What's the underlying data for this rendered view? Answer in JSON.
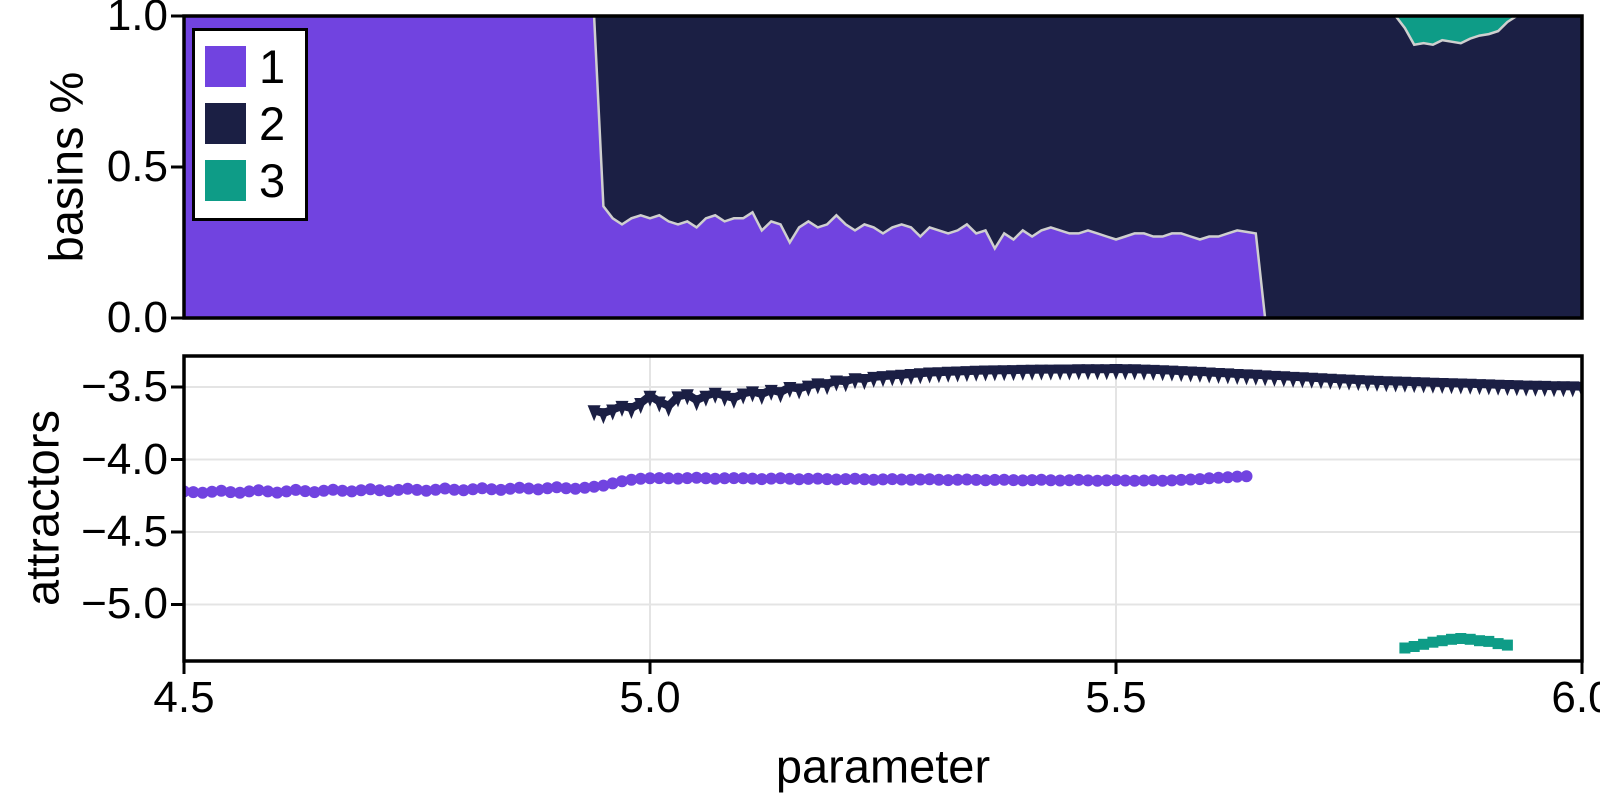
{
  "figure": {
    "xlabel": "parameter",
    "background": "#ffffff",
    "x_ticks": {
      "values": [
        4.5,
        5.0,
        5.5,
        6.0
      ],
      "labels": [
        "4.5",
        "5.0",
        "5.5",
        "6.0"
      ]
    }
  },
  "colors": {
    "attractor1": "#7143E0",
    "attractor2": "#1B1F44",
    "attractor3": "#0E9C87",
    "band_outline": "#CFCFCF",
    "gridline": "#E4E4E4",
    "spine": "#000000",
    "text": "#000000"
  },
  "chart_data": [
    {
      "type": "area",
      "stacked": true,
      "ylabel": "basins %",
      "xlim": [
        4.5,
        6.0
      ],
      "ylim": [
        0,
        1
      ],
      "y_ticks": {
        "values": [
          1.0,
          0.5,
          0.0
        ],
        "labels": [
          "1.0",
          "0.5",
          "0.0"
        ]
      },
      "legend": {
        "position": "top-left",
        "labels": [
          "1",
          "2",
          "3"
        ]
      },
      "x_start": 4.5,
      "x_step": 0.01,
      "series": [
        {
          "name": "1",
          "color_key": "attractor1",
          "fractions": [
            1,
            1,
            1,
            1,
            1,
            1,
            1,
            1,
            1,
            1,
            1,
            1,
            1,
            1,
            1,
            1,
            1,
            1,
            1,
            1,
            1,
            1,
            1,
            1,
            1,
            1,
            1,
            1,
            1,
            1,
            1,
            1,
            1,
            1,
            1,
            1,
            1,
            1,
            1,
            1,
            1,
            1,
            1,
            1,
            1,
            0.37,
            0.33,
            0.31,
            0.33,
            0.34,
            0.33,
            0.34,
            0.32,
            0.31,
            0.32,
            0.3,
            0.33,
            0.34,
            0.32,
            0.33,
            0.33,
            0.35,
            0.29,
            0.32,
            0.31,
            0.25,
            0.3,
            0.32,
            0.3,
            0.31,
            0.34,
            0.31,
            0.29,
            0.31,
            0.3,
            0.28,
            0.3,
            0.31,
            0.3,
            0.27,
            0.3,
            0.29,
            0.28,
            0.29,
            0.31,
            0.28,
            0.29,
            0.23,
            0.28,
            0.26,
            0.29,
            0.27,
            0.29,
            0.3,
            0.29,
            0.28,
            0.28,
            0.29,
            0.28,
            0.27,
            0.26,
            0.27,
            0.28,
            0.28,
            0.27,
            0.27,
            0.28,
            0.28,
            0.27,
            0.26,
            0.27,
            0.27,
            0.28,
            0.29,
            0.285,
            0.28,
            0,
            0,
            0,
            0,
            0,
            0,
            0,
            0,
            0,
            0,
            0,
            0,
            0,
            0,
            0,
            0,
            0,
            0,
            0,
            0,
            0,
            0,
            0,
            0,
            0,
            0,
            0,
            0,
            0,
            0,
            0,
            0,
            0,
            0,
            0
          ]
        },
        {
          "name": "2",
          "color_key": "attractor2",
          "fractions_rule": "remainder"
        },
        {
          "name": "3",
          "color_key": "attractor3",
          "fractions": [
            0,
            0,
            0,
            0,
            0,
            0,
            0,
            0,
            0,
            0,
            0,
            0,
            0,
            0,
            0,
            0,
            0,
            0,
            0,
            0,
            0,
            0,
            0,
            0,
            0,
            0,
            0,
            0,
            0,
            0,
            0,
            0,
            0,
            0,
            0,
            0,
            0,
            0,
            0,
            0,
            0,
            0,
            0,
            0,
            0,
            0,
            0,
            0,
            0,
            0,
            0,
            0,
            0,
            0,
            0,
            0,
            0,
            0,
            0,
            0,
            0,
            0,
            0,
            0,
            0,
            0,
            0,
            0,
            0,
            0,
            0,
            0,
            0,
            0,
            0,
            0,
            0,
            0,
            0,
            0,
            0,
            0,
            0,
            0,
            0,
            0,
            0,
            0,
            0,
            0,
            0,
            0,
            0,
            0,
            0,
            0,
            0,
            0,
            0,
            0,
            0,
            0,
            0,
            0,
            0,
            0,
            0,
            0,
            0,
            0,
            0,
            0,
            0,
            0,
            0,
            0,
            0,
            0,
            0,
            0,
            0,
            0,
            0,
            0,
            0,
            0,
            0,
            0,
            0,
            0,
            0,
            0.04,
            0.095,
            0.09,
            0.095,
            0.08,
            0.085,
            0.09,
            0.075,
            0.065,
            0.06,
            0.05,
            0.02,
            0,
            0,
            0,
            0,
            0,
            0,
            0,
            0
          ]
        }
      ]
    },
    {
      "type": "scatter",
      "ylabel": "attractors",
      "xlim": [
        4.5,
        6.0
      ],
      "ylim": [
        -5.39,
        -3.286
      ],
      "y_ticks": {
        "values": [
          -3.5,
          -4.0,
          -4.5,
          -5.0
        ],
        "labels": [
          "−3.5",
          "−4.0",
          "−4.5",
          "−5.0"
        ]
      },
      "grid": true,
      "series": [
        {
          "name": "1",
          "marker": "circle",
          "color_key": "attractor1",
          "x_start": 4.5,
          "x_step": 0.01,
          "y": [
            -4.22,
            -4.225,
            -4.23,
            -4.222,
            -4.215,
            -4.225,
            -4.23,
            -4.22,
            -4.212,
            -4.22,
            -4.228,
            -4.22,
            -4.21,
            -4.218,
            -4.225,
            -4.215,
            -4.208,
            -4.215,
            -4.22,
            -4.212,
            -4.205,
            -4.212,
            -4.218,
            -4.21,
            -4.202,
            -4.21,
            -4.215,
            -4.208,
            -4.2,
            -4.208,
            -4.212,
            -4.205,
            -4.198,
            -4.205,
            -4.21,
            -4.202,
            -4.195,
            -4.2,
            -4.206,
            -4.198,
            -4.192,
            -4.198,
            -4.202,
            -4.195,
            -4.188,
            -4.18,
            -4.165,
            -4.15,
            -4.14,
            -4.133,
            -4.13,
            -4.128,
            -4.13,
            -4.132,
            -4.128,
            -4.126,
            -4.13,
            -4.133,
            -4.13,
            -4.128,
            -4.13,
            -4.132,
            -4.135,
            -4.132,
            -4.13,
            -4.133,
            -4.136,
            -4.134,
            -4.132,
            -4.135,
            -4.138,
            -4.135,
            -4.133,
            -4.136,
            -4.139,
            -4.137,
            -4.135,
            -4.138,
            -4.14,
            -4.138,
            -4.136,
            -4.139,
            -4.142,
            -4.14,
            -4.138,
            -4.141,
            -4.143,
            -4.141,
            -4.139,
            -4.142,
            -4.144,
            -4.142,
            -4.14,
            -4.143,
            -4.145,
            -4.143,
            -4.141,
            -4.144,
            -4.146,
            -4.144,
            -4.142,
            -4.145,
            -4.147,
            -4.145,
            -4.143,
            -4.146,
            -4.144,
            -4.141,
            -4.138,
            -4.135,
            -4.13,
            -4.126,
            -4.122,
            -4.118,
            -4.115
          ]
        },
        {
          "name": "2",
          "marker": "triangle-down",
          "color_key": "attractor2",
          "x_start": 4.94,
          "x_step": 0.01,
          "y": [
            -3.66,
            -3.68,
            -3.655,
            -3.63,
            -3.645,
            -3.61,
            -3.56,
            -3.6,
            -3.63,
            -3.565,
            -3.55,
            -3.59,
            -3.56,
            -3.54,
            -3.56,
            -3.575,
            -3.545,
            -3.53,
            -3.548,
            -3.52,
            -3.535,
            -3.5,
            -3.51,
            -3.49,
            -3.475,
            -3.48,
            -3.455,
            -3.46,
            -3.44,
            -3.445,
            -3.43,
            -3.425,
            -3.42,
            -3.415,
            -3.41,
            -3.405,
            -3.4,
            -3.398,
            -3.395,
            -3.393,
            -3.39,
            -3.388,
            -3.386,
            -3.385,
            -3.384,
            -3.383,
            -3.382,
            -3.381,
            -3.38,
            -3.38,
            -3.379,
            -3.379,
            -3.378,
            -3.378,
            -3.377,
            -3.377,
            -3.376,
            -3.377,
            -3.378,
            -3.38,
            -3.382,
            -3.384,
            -3.387,
            -3.39,
            -3.393,
            -3.396,
            -3.4,
            -3.403,
            -3.406,
            -3.41,
            -3.413,
            -3.416,
            -3.42,
            -3.423,
            -3.426,
            -3.43,
            -3.433,
            -3.436,
            -3.44,
            -3.443,
            -3.446,
            -3.449,
            -3.452,
            -3.455,
            -3.458,
            -3.46,
            -3.462,
            -3.464,
            -3.466,
            -3.468,
            -3.47,
            -3.472,
            -3.474,
            -3.476,
            -3.478,
            -3.48,
            -3.482,
            -3.484,
            -3.486,
            -3.488,
            -3.49,
            -3.491,
            -3.492,
            -3.494,
            -3.495,
            -3.496,
            -3.498
          ]
        },
        {
          "name": "3",
          "marker": "square",
          "color_key": "attractor3",
          "x_start": 5.81,
          "x_step": 0.01,
          "y": [
            -5.3,
            -5.29,
            -5.275,
            -5.26,
            -5.25,
            -5.24,
            -5.235,
            -5.24,
            -5.25,
            -5.255,
            -5.27,
            -5.28
          ]
        }
      ]
    }
  ]
}
